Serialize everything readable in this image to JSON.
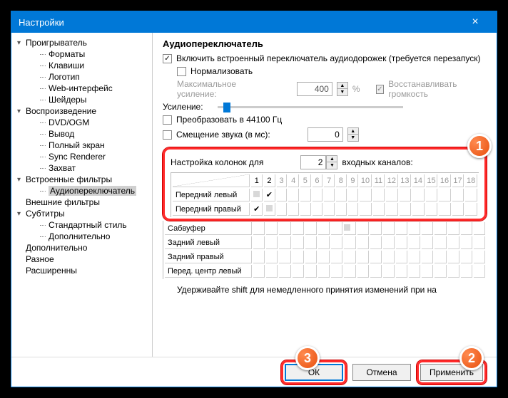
{
  "window": {
    "title": "Настройки"
  },
  "tree": {
    "groups": [
      {
        "label": "Проигрыватель",
        "open": true,
        "children": [
          "Форматы",
          "Клавиши",
          "Логотип",
          "Web-интерфейс",
          "Шейдеры"
        ]
      },
      {
        "label": "Воспроизведение",
        "open": true,
        "children": [
          "DVD/OGM",
          "Вывод",
          "Полный экран",
          "Sync Renderer",
          "Захват"
        ]
      },
      {
        "label": "Встроенные фильтры",
        "open": true,
        "children": [
          "Аудиопереключатель"
        ],
        "selected": "Аудиопереключатель"
      },
      {
        "label": "Внешние фильтры",
        "open": false,
        "children": []
      },
      {
        "label": "Субтитры",
        "open": true,
        "children": [
          "Стандартный стиль",
          "Дополнительно"
        ]
      },
      {
        "label": "Дополнительно",
        "open": false,
        "children": []
      },
      {
        "label": "Разное",
        "open": false,
        "children": []
      },
      {
        "label": "Расширенны",
        "open": false,
        "children": []
      }
    ]
  },
  "panel": {
    "heading": "Аудиопереключатель",
    "enable_label": "Включить встроенный переключатель аудиодорожек (требуется перезапуск)",
    "normalize_label": "Нормализовать",
    "max_ampl_label": "Максимальное усиление:",
    "max_ampl_value": "400",
    "percent": "%",
    "restore_vol_label": "Восстанавливать громкость",
    "ampl_label": "Усиление:",
    "convert44_label": "Преобразовать в 44100 Гц",
    "shift_label": "Смещение звука (в мс):",
    "shift_value": "0",
    "columns_header_pre": "Настройка колонок для",
    "columns_value": "2",
    "columns_header_post": "входных каналов:",
    "col_numbers": [
      "1",
      "2",
      "3",
      "4",
      "5",
      "6",
      "7",
      "8",
      "9",
      "10",
      "11",
      "12",
      "13",
      "14",
      "15",
      "16",
      "17",
      "18"
    ],
    "row1": "Передний левый",
    "row2": "Передний правый",
    "extra_rows": [
      "Сабвуфер",
      "Задний левый",
      "Задний правый",
      "Перед. центр левый"
    ],
    "hint": "Удерживайте shift для немедленного принятия изменений при на"
  },
  "buttons": {
    "ok": "ОК",
    "cancel": "Отмена",
    "apply": "Применить"
  },
  "colors": {
    "accent": "#0078d7",
    "highlight": "#ff2a2a",
    "badge": "#e8500e"
  },
  "badges": {
    "b1": "1",
    "b2": "2",
    "b3": "3"
  }
}
